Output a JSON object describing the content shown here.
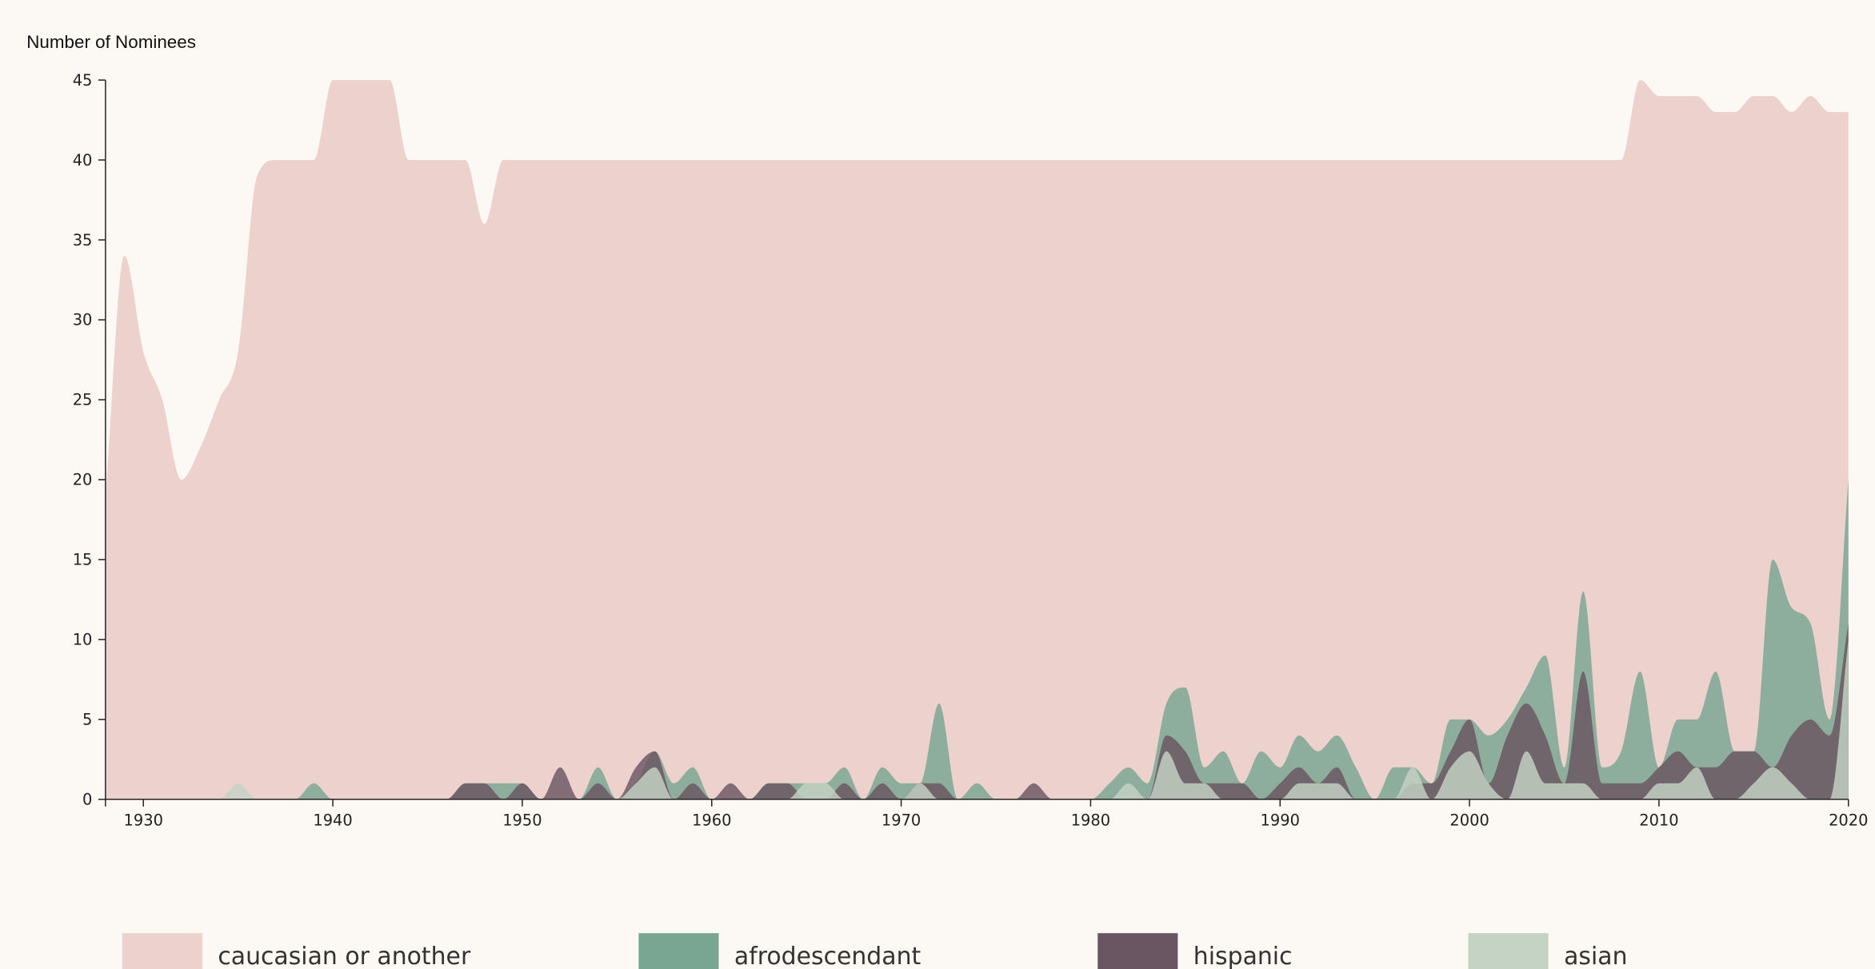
{
  "chart_data": {
    "type": "area",
    "y_label": "Number of Nominees",
    "x": [
      1928,
      1929,
      1930,
      1931,
      1932,
      1933,
      1934,
      1935,
      1936,
      1937,
      1938,
      1939,
      1940,
      1941,
      1942,
      1943,
      1944,
      1945,
      1946,
      1947,
      1948,
      1949,
      1950,
      1951,
      1952,
      1953,
      1954,
      1955,
      1956,
      1957,
      1958,
      1959,
      1960,
      1961,
      1962,
      1963,
      1964,
      1965,
      1966,
      1967,
      1968,
      1969,
      1970,
      1971,
      1972,
      1973,
      1974,
      1975,
      1976,
      1977,
      1978,
      1979,
      1980,
      1981,
      1982,
      1983,
      1984,
      1985,
      1986,
      1987,
      1988,
      1989,
      1990,
      1991,
      1992,
      1993,
      1994,
      1995,
      1996,
      1997,
      1998,
      1999,
      2000,
      2001,
      2002,
      2003,
      2004,
      2005,
      2006,
      2007,
      2008,
      2009,
      2010,
      2011,
      2012,
      2013,
      2014,
      2015,
      2016,
      2017,
      2018,
      2019,
      2020
    ],
    "series": [
      {
        "name": "caucasian or another",
        "color": "#ecd1cd",
        "values": [
          19,
          34,
          28,
          25,
          20,
          22,
          25,
          28,
          39,
          40,
          40,
          40,
          45,
          45,
          45,
          45,
          40,
          40,
          40,
          40,
          36,
          40,
          40,
          40,
          40,
          40,
          40,
          40,
          40,
          40,
          40,
          40,
          40,
          40,
          40,
          40,
          40,
          40,
          40,
          40,
          40,
          40,
          40,
          40,
          40,
          40,
          40,
          40,
          40,
          40,
          40,
          40,
          40,
          40,
          40,
          40,
          40,
          40,
          40,
          40,
          40,
          40,
          40,
          40,
          40,
          40,
          40,
          40,
          40,
          40,
          40,
          40,
          40,
          40,
          40,
          40,
          40,
          40,
          40,
          40,
          40,
          45,
          44,
          44,
          44,
          43,
          43,
          44,
          44,
          43,
          44,
          43,
          43
        ]
      },
      {
        "name": "afrodescendant",
        "color": "#79a693",
        "values": [
          0,
          0,
          0,
          0,
          0,
          0,
          0,
          0,
          0,
          0,
          0,
          1,
          0,
          0,
          0,
          0,
          0,
          0,
          0,
          1,
          1,
          1,
          1,
          0,
          0,
          0,
          2,
          0,
          1,
          3,
          1,
          2,
          0,
          0,
          0,
          1,
          1,
          1,
          1,
          2,
          0,
          2,
          1,
          1,
          6,
          0,
          1,
          0,
          0,
          0,
          0,
          0,
          0,
          1,
          2,
          1,
          6,
          7,
          2,
          3,
          1,
          3,
          2,
          4,
          3,
          4,
          2,
          0,
          2,
          2,
          1,
          5,
          5,
          4,
          5,
          7,
          9,
          2,
          13,
          2,
          3,
          8,
          2,
          5,
          5,
          8,
          3,
          3,
          15,
          12,
          11,
          5,
          20
        ]
      },
      {
        "name": "hispanic",
        "color": "#6a5562",
        "values": [
          0,
          0,
          0,
          0,
          0,
          0,
          0,
          0,
          0,
          0,
          0,
          0,
          0,
          0,
          0,
          0,
          0,
          0,
          0,
          1,
          1,
          0,
          1,
          0,
          2,
          0,
          1,
          0,
          2,
          3,
          0,
          1,
          0,
          1,
          0,
          1,
          1,
          0,
          0,
          1,
          0,
          1,
          0,
          1,
          1,
          0,
          0,
          0,
          0,
          1,
          0,
          0,
          0,
          0,
          0,
          0,
          4,
          3,
          1,
          1,
          1,
          0,
          1,
          2,
          1,
          2,
          0,
          0,
          0,
          1,
          1,
          3,
          5,
          1,
          4,
          6,
          4,
          1,
          8,
          1,
          1,
          1,
          2,
          3,
          2,
          2,
          3,
          3,
          2,
          4,
          5,
          4,
          11
        ]
      },
      {
        "name": "asian",
        "color": "#c5d3c4",
        "values": [
          0,
          0,
          0,
          0,
          0,
          0,
          0,
          1,
          0,
          0,
          0,
          0,
          0,
          0,
          0,
          0,
          0,
          0,
          0,
          0,
          0,
          0,
          0,
          0,
          0,
          0,
          0,
          0,
          1,
          2,
          0,
          0,
          0,
          0,
          0,
          0,
          0,
          1,
          1,
          0,
          0,
          0,
          0,
          1,
          0,
          0,
          0,
          0,
          0,
          0,
          0,
          0,
          0,
          0,
          1,
          0,
          3,
          1,
          1,
          0,
          0,
          0,
          0,
          1,
          1,
          1,
          0,
          0,
          0,
          2,
          0,
          2,
          3,
          1,
          0,
          3,
          1,
          1,
          1,
          0,
          0,
          0,
          1,
          1,
          2,
          0,
          0,
          1,
          2,
          1,
          0,
          0,
          10
        ]
      }
    ],
    "xlim": [
      1928,
      2020
    ],
    "xticks": [
      1930,
      1940,
      1950,
      1960,
      1970,
      1980,
      1990,
      2000,
      2010,
      2020
    ],
    "ylim": [
      0,
      45
    ],
    "yticks": [
      0,
      5,
      10,
      15,
      20,
      25,
      30,
      35,
      40,
      45
    ]
  }
}
